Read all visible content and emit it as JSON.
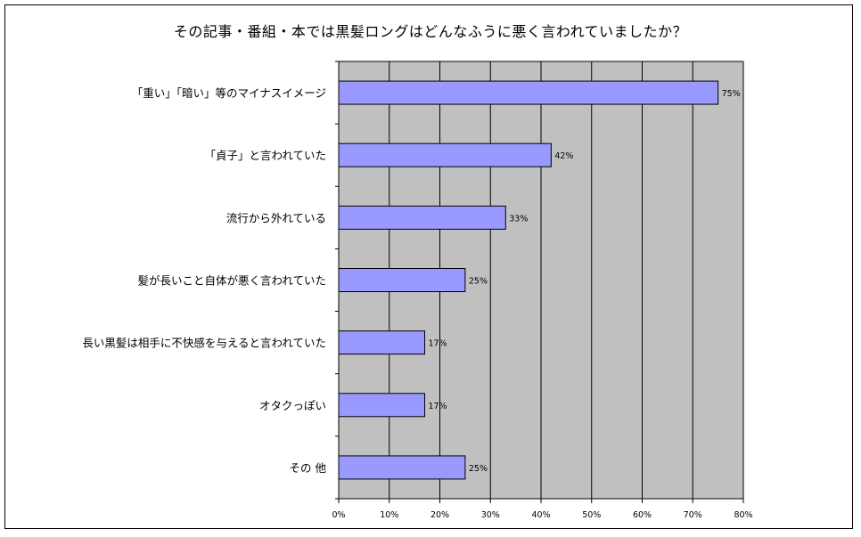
{
  "chart_data": {
    "type": "bar",
    "orientation": "horizontal",
    "title": "その記事・番組・本では黒髪ロングはどんなふうに悪く言われていましたか？",
    "categories": [
      "「重い」「暗い」等のマイナスイメージ",
      "「貞子」と言われていた",
      "流行から外れている",
      "髪が長いこと自体が悪く言われていた",
      "長い黒髪は相手に不快感を与えると言われていた",
      "オタクっぽい",
      "その 他"
    ],
    "values": [
      75,
      42,
      33,
      25,
      17,
      17,
      25
    ],
    "data_labels": [
      "75%",
      "42%",
      "33%",
      "25%",
      "17%",
      "17%",
      "25%"
    ],
    "xlim": [
      0,
      80
    ],
    "xticks": [
      "0%",
      "10%",
      "20%",
      "30%",
      "40%",
      "50%",
      "60%",
      "70%",
      "80%"
    ],
    "xlabel": "",
    "ylabel": "",
    "grid": true,
    "legend": "none",
    "colors": {
      "bar_fill": "#9999ff",
      "bar_stroke": "#000000",
      "plot_background": "#c0c0c0",
      "gridline": "#000000"
    }
  }
}
